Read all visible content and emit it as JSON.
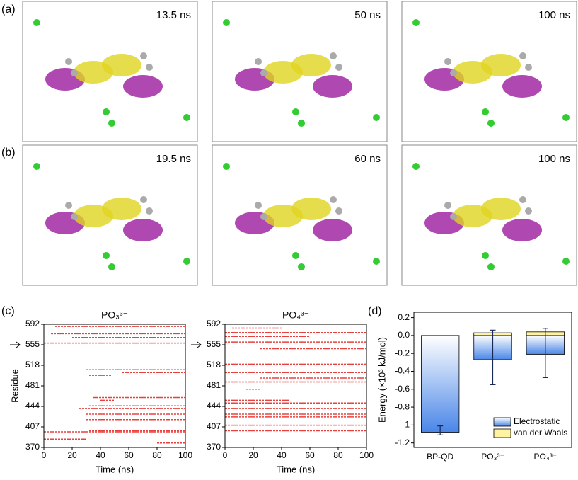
{
  "panel_labels": [
    "(a)",
    "(b)",
    "(c)",
    "(d)"
  ],
  "snapshots": {
    "a": [
      "13.5 ns",
      "50 ns",
      "100 ns"
    ],
    "b": [
      "19.5 ns",
      "60 ns",
      "100 ns"
    ]
  },
  "chart_data": [
    {
      "type": "contact_map",
      "title": "PO₃³⁻",
      "x_label": "Time (ns)",
      "y_label": "Residue",
      "color": "#e8403c",
      "xlim": [
        0,
        100
      ],
      "xticks": [
        0,
        20,
        40,
        60,
        80,
        100
      ],
      "ylim": [
        370,
        592
      ],
      "yticks": [
        370,
        407,
        444,
        481,
        518,
        555,
        592
      ],
      "segments": [
        {
          "residue": 588,
          "start": 8,
          "end": 100
        },
        {
          "residue": 575,
          "start": 5,
          "end": 100
        },
        {
          "residue": 568,
          "start": 20,
          "end": 100
        },
        {
          "residue": 558,
          "start": 0,
          "end": 100
        },
        {
          "residue": 510,
          "start": 30,
          "end": 100
        },
        {
          "residue": 505,
          "start": 55,
          "end": 100
        },
        {
          "residue": 500,
          "start": 32,
          "end": 48
        },
        {
          "residue": 460,
          "start": 35,
          "end": 100
        },
        {
          "residue": 455,
          "start": 40,
          "end": 50
        },
        {
          "residue": 445,
          "start": 32,
          "end": 100
        },
        {
          "residue": 440,
          "start": 25,
          "end": 100
        },
        {
          "residue": 430,
          "start": 30,
          "end": 100
        },
        {
          "residue": 420,
          "start": 30,
          "end": 100
        },
        {
          "residue": 400,
          "start": 32,
          "end": 100
        },
        {
          "residue": 398,
          "start": 0,
          "end": 100
        },
        {
          "residue": 385,
          "start": 0,
          "end": 30
        },
        {
          "residue": 378,
          "start": 80,
          "end": 100
        }
      ]
    },
    {
      "type": "contact_map",
      "title": "PO₄³⁻",
      "x_label": "Time (ns)",
      "y_label": null,
      "color": "#e8403c",
      "xlim": [
        0,
        100
      ],
      "xticks": [
        0,
        20,
        40,
        60,
        80,
        100
      ],
      "ylim": [
        370,
        592
      ],
      "yticks": [
        370,
        407,
        444,
        481,
        518,
        555,
        592
      ],
      "segments": [
        {
          "residue": 585,
          "start": 5,
          "end": 40
        },
        {
          "residue": 577,
          "start": 0,
          "end": 100
        },
        {
          "residue": 570,
          "start": 0,
          "end": 60
        },
        {
          "residue": 560,
          "start": 0,
          "end": 100
        },
        {
          "residue": 548,
          "start": 25,
          "end": 100
        },
        {
          "residue": 520,
          "start": 0,
          "end": 100
        },
        {
          "residue": 505,
          "start": 0,
          "end": 100
        },
        {
          "residue": 495,
          "start": 25,
          "end": 100
        },
        {
          "residue": 488,
          "start": 0,
          "end": 100
        },
        {
          "residue": 475,
          "start": 15,
          "end": 25
        },
        {
          "residue": 455,
          "start": 0,
          "end": 45
        },
        {
          "residue": 450,
          "start": 0,
          "end": 100
        },
        {
          "residue": 440,
          "start": 0,
          "end": 100
        },
        {
          "residue": 430,
          "start": 0,
          "end": 100
        },
        {
          "residue": 425,
          "start": 0,
          "end": 100
        },
        {
          "residue": 410,
          "start": 0,
          "end": 100
        },
        {
          "residue": 400,
          "start": 0,
          "end": 100
        }
      ]
    },
    {
      "type": "bar",
      "y_label": "Energy (×10³ kJ/mol)",
      "categories": [
        "BP-QD",
        "PO₃³⁻",
        "PO₄³⁻"
      ],
      "ylim": [
        -1.25,
        0.26
      ],
      "yticks": [
        -1.2,
        -1.0,
        -0.8,
        -0.6,
        -0.4,
        -0.2,
        {
          "value": 0,
          "label": "0.0"
        },
        0.2
      ],
      "series": [
        {
          "name": "Electrostatic",
          "color": "#4a86e8",
          "values": [
            -1.08,
            -0.27,
            -0.21
          ]
        },
        {
          "name": "van der Waals",
          "color": "#fff2a0",
          "values": [
            0,
            0.03,
            0.04
          ]
        }
      ],
      "error_bars": {
        "center": [
          -1.06,
          -0.245,
          -0.195
        ],
        "error": [
          0.05,
          0.305,
          0.275
        ]
      },
      "legend": "lower right"
    }
  ]
}
